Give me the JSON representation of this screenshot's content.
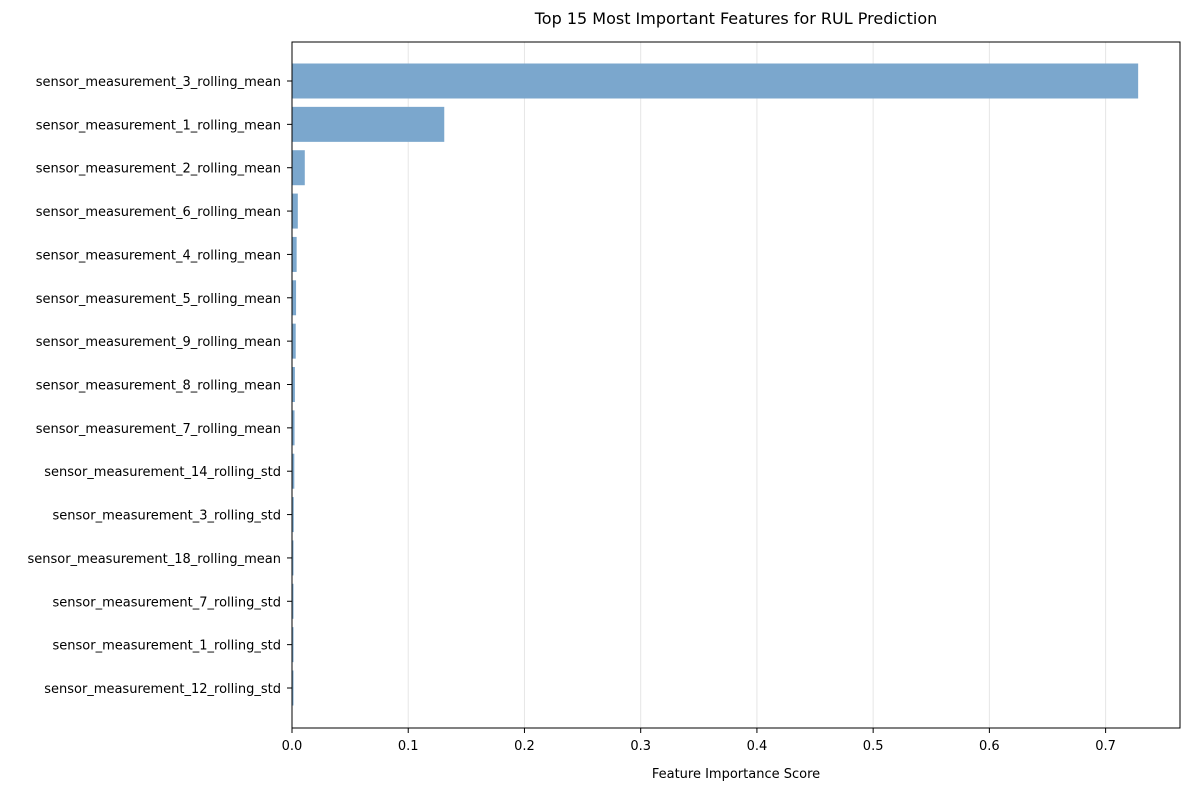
{
  "chart_data": {
    "type": "bar",
    "orientation": "horizontal",
    "title": "Top 15 Most Important Features for RUL Prediction",
    "xlabel": "Feature Importance Score",
    "ylabel": "",
    "xlim": [
      0,
      0.764
    ],
    "xticks": [
      0.0,
      0.1,
      0.2,
      0.3,
      0.4,
      0.5,
      0.6,
      0.7
    ],
    "xtick_labels": [
      "0.0",
      "0.1",
      "0.2",
      "0.3",
      "0.4",
      "0.5",
      "0.6",
      "0.7"
    ],
    "grid": {
      "x": true,
      "y": false
    },
    "bar_color": "#7ba7cd",
    "categories": [
      "sensor_measurement_3_rolling_mean",
      "sensor_measurement_1_rolling_mean",
      "sensor_measurement_2_rolling_mean",
      "sensor_measurement_6_rolling_mean",
      "sensor_measurement_4_rolling_mean",
      "sensor_measurement_5_rolling_mean",
      "sensor_measurement_9_rolling_mean",
      "sensor_measurement_8_rolling_mean",
      "sensor_measurement_7_rolling_mean",
      "sensor_measurement_14_rolling_std",
      "sensor_measurement_3_rolling_std",
      "sensor_measurement_18_rolling_mean",
      "sensor_measurement_7_rolling_std",
      "sensor_measurement_1_rolling_std",
      "sensor_measurement_12_rolling_std"
    ],
    "values": [
      0.728,
      0.131,
      0.011,
      0.005,
      0.004,
      0.0035,
      0.0032,
      0.0025,
      0.0022,
      0.002,
      0.0015,
      0.0013,
      0.0012,
      0.0011,
      0.001
    ]
  }
}
